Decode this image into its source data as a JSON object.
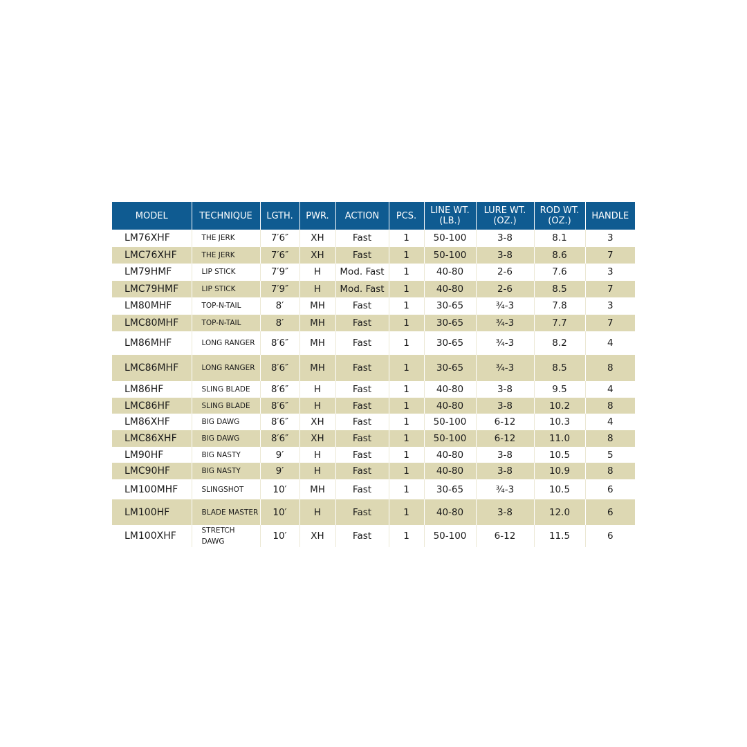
{
  "colors": {
    "header": "#0f5b91",
    "stripe": "#ddd8b3"
  },
  "headers": [
    "MODEL",
    "TECHNIQUE",
    "LGTH.",
    "PWR.",
    "ACTION",
    "PCS.",
    "LINE WT.\n(LB.)",
    "LURE WT.\n(OZ.)",
    "ROD WT.\n(OZ.)",
    "HANDLE"
  ],
  "rows": [
    [
      "LM76XHF",
      "THE JERK",
      "7′6″",
      "XH",
      "Fast",
      "1",
      "50-100",
      "3-8",
      "8.1",
      "3"
    ],
    [
      "LMC76XHF",
      "THE JERK",
      "7′6″",
      "XH",
      "Fast",
      "1",
      "50-100",
      "3-8",
      "8.6",
      "7"
    ],
    [
      "LM79HMF",
      "LIP STICK",
      "7′9″",
      "H",
      "Mod. Fast",
      "1",
      "40-80",
      "2-6",
      "7.6",
      "3"
    ],
    [
      "LMC79HMF",
      "LIP STICK",
      "7′9″",
      "H",
      "Mod. Fast",
      "1",
      "40-80",
      "2-6",
      "8.5",
      "7"
    ],
    [
      "LM80MHF",
      "TOP-N-TAIL",
      "8′",
      "MH",
      "Fast",
      "1",
      "30-65",
      "¾-3",
      "7.8",
      "3"
    ],
    [
      "LMC80MHF",
      "TOP-N-TAIL",
      "8′",
      "MH",
      "Fast",
      "1",
      "30-65",
      "¾-3",
      "7.7",
      "7"
    ],
    [
      "LM86MHF",
      "LONG RANGER",
      "8′6″",
      "MH",
      "Fast",
      "1",
      "30-65",
      "¾-3",
      "8.2",
      "4"
    ],
    [
      "LMC86MHF",
      "LONG RANGER",
      "8′6″",
      "MH",
      "Fast",
      "1",
      "30-65",
      "¾-3",
      "8.5",
      "8"
    ],
    [
      "LM86HF",
      "SLING BLADE",
      "8′6″",
      "H",
      "Fast",
      "1",
      "40-80",
      "3-8",
      "9.5",
      "4"
    ],
    [
      "LMC86HF",
      "SLING BLADE",
      "8′6″",
      "H",
      "Fast",
      "1",
      "40-80",
      "3-8",
      "10.2",
      "8"
    ],
    [
      "LM86XHF",
      "BIG DAWG",
      "8′6″",
      "XH",
      "Fast",
      "1",
      "50-100",
      "6-12",
      "10.3",
      "4"
    ],
    [
      "LMC86XHF",
      "BIG DAWG",
      "8′6″",
      "XH",
      "Fast",
      "1",
      "50-100",
      "6-12",
      "11.0",
      "8"
    ],
    [
      "LM90HF",
      "BIG NASTY",
      "9′",
      "H",
      "Fast",
      "1",
      "40-80",
      "3-8",
      "10.5",
      "5"
    ],
    [
      "LMC90HF",
      "BIG NASTY",
      "9′",
      "H",
      "Fast",
      "1",
      "40-80",
      "3-8",
      "10.9",
      "8"
    ],
    [
      "LM100MHF",
      "SLINGSHOT",
      "10′",
      "MH",
      "Fast",
      "1",
      "30-65",
      "¾-3",
      "10.5",
      "6"
    ],
    [
      "LM100HF",
      "BLADE MASTER",
      "10′",
      "H",
      "Fast",
      "1",
      "40-80",
      "3-8",
      "12.0",
      "6"
    ],
    [
      "LM100XHF",
      "STRETCH DAWG",
      "10′",
      "XH",
      "Fast",
      "1",
      "50-100",
      "6-12",
      "11.5",
      "6"
    ]
  ]
}
